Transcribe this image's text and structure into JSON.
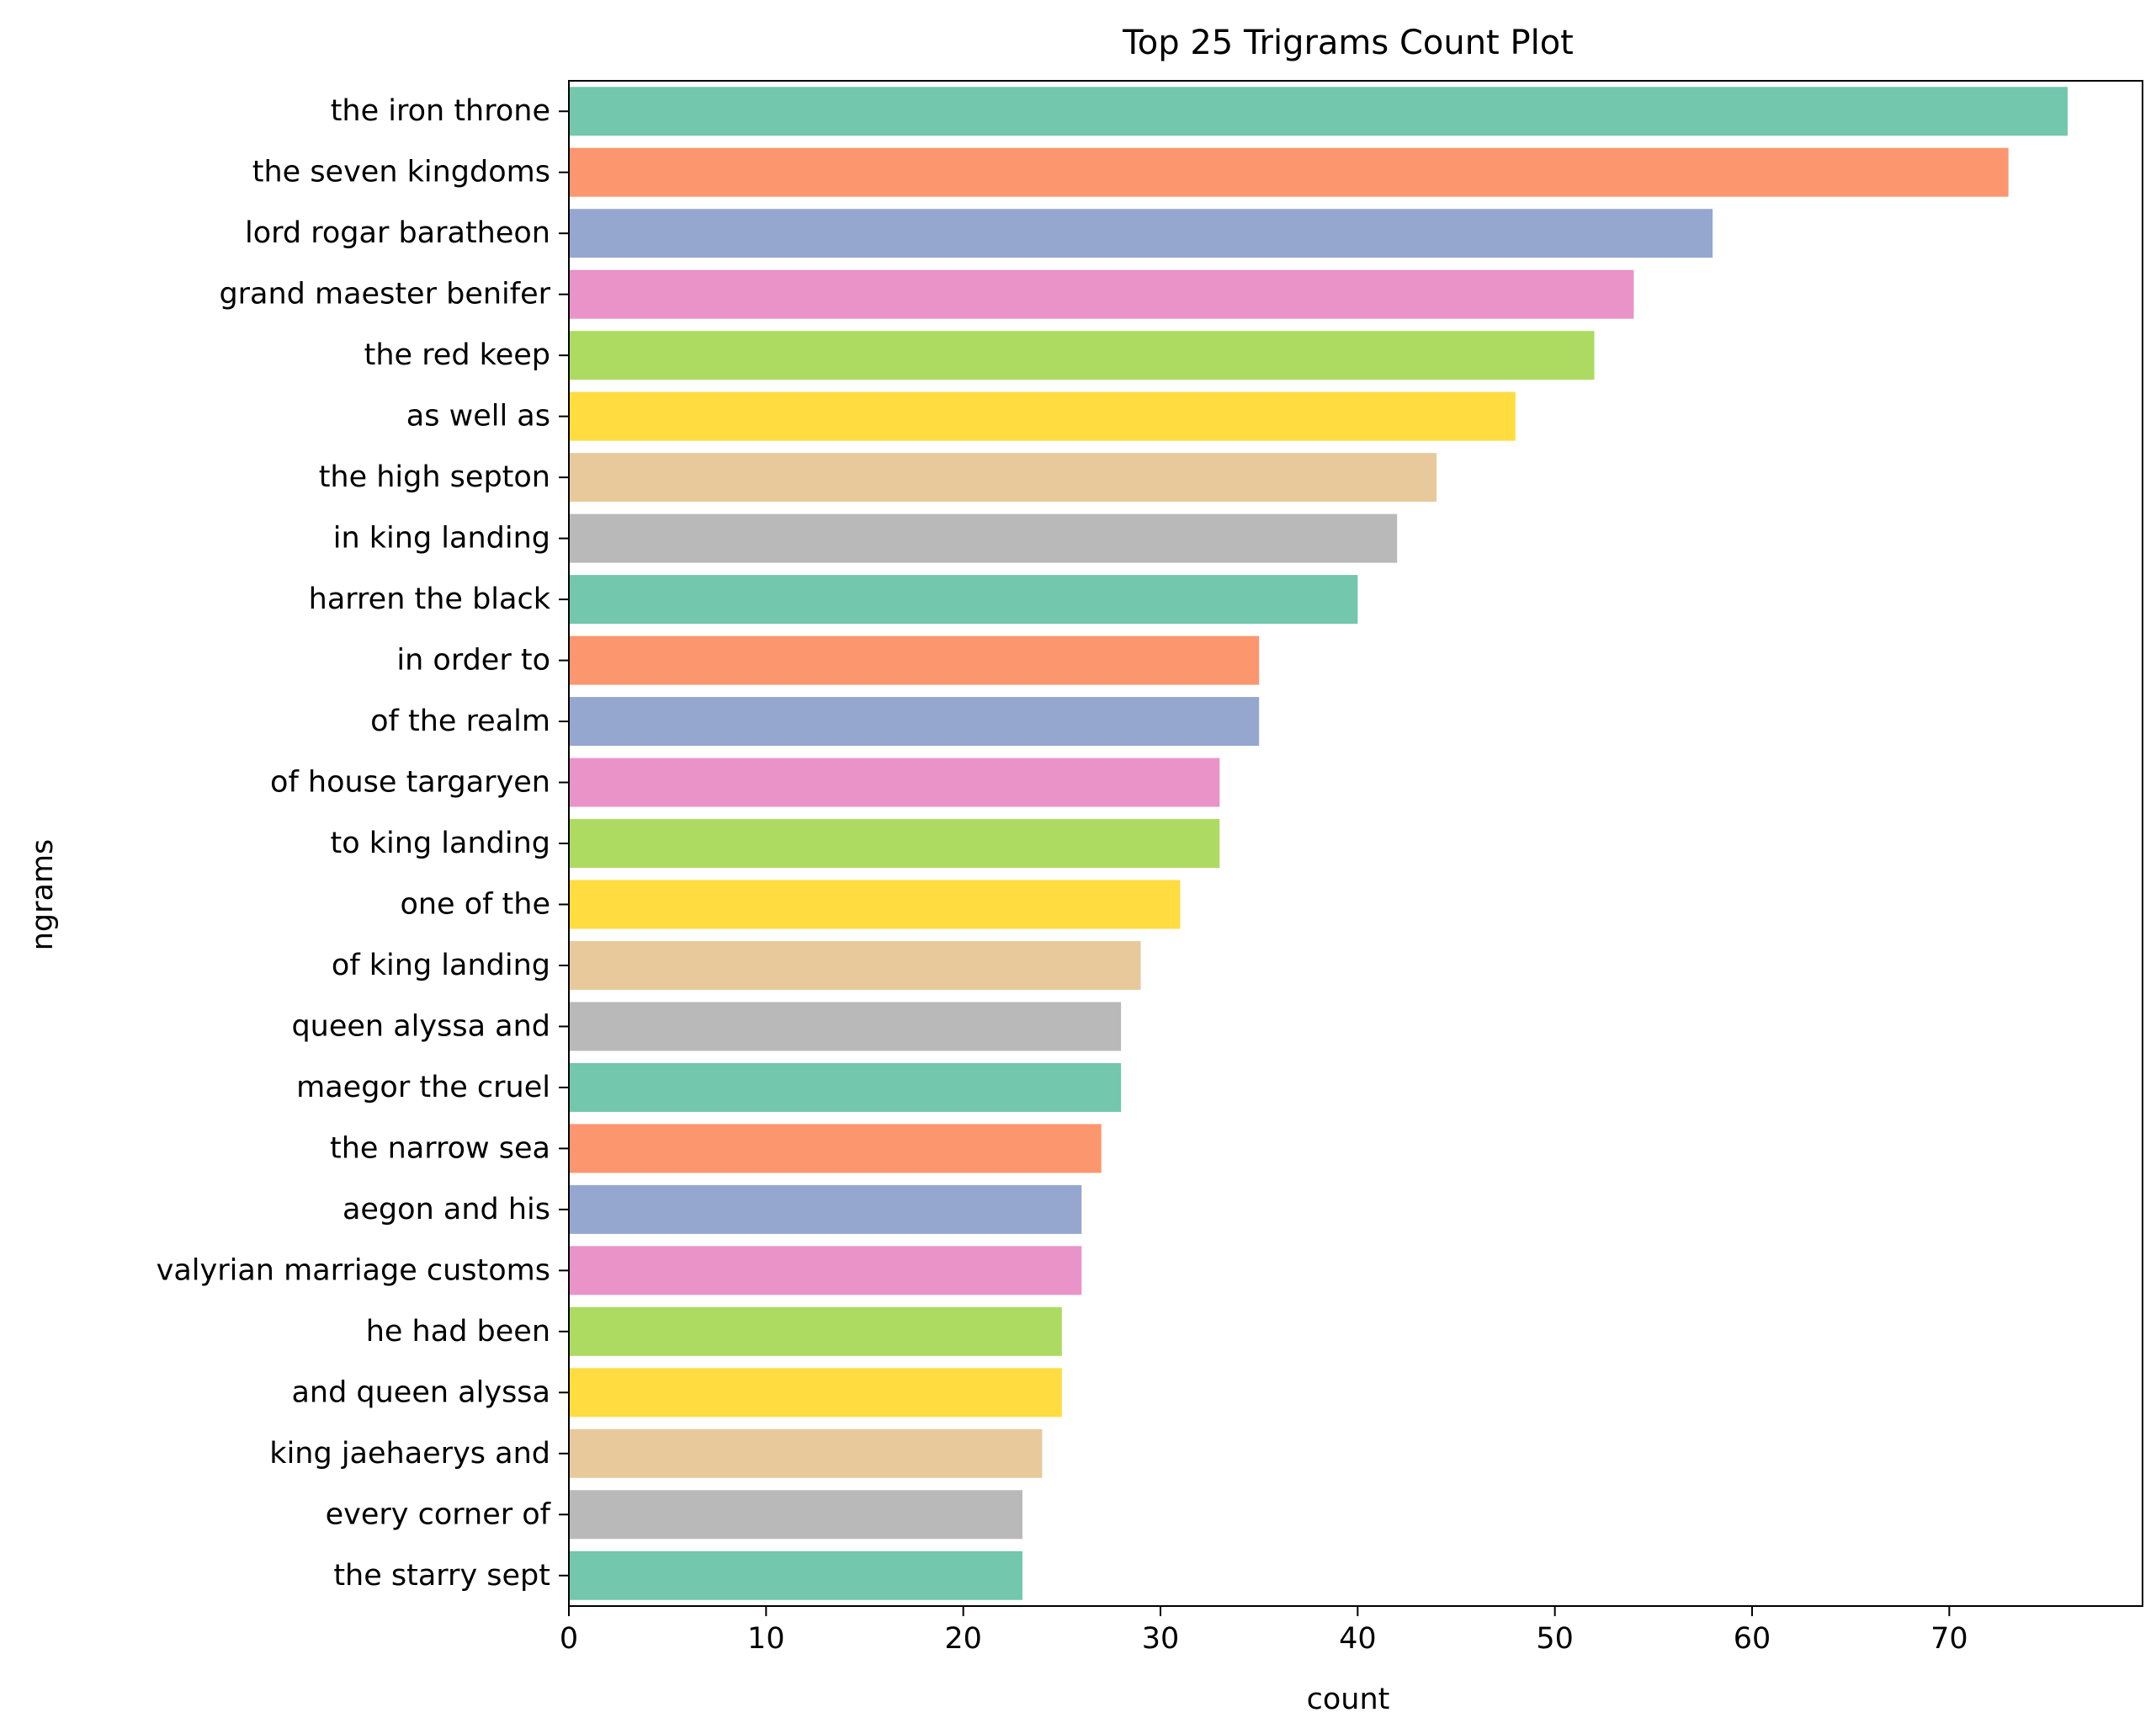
{
  "chart_data": {
    "type": "bar",
    "orientation": "horizontal",
    "title": "Top 25 Trigrams Count Plot",
    "xlabel": "count",
    "ylabel": "ngrams",
    "xlim": [
      0,
      79.8
    ],
    "xticks": [
      0,
      10,
      20,
      30,
      40,
      50,
      60,
      70
    ],
    "grid": false,
    "legend": "none",
    "palette": [
      "#66c2a5",
      "#fc8d62",
      "#8da0cb",
      "#e78ac3",
      "#a6d854",
      "#ffd92f",
      "#e5c494",
      "#b3b3b3"
    ],
    "bar_alpha": 0.92,
    "categories": [
      "the iron throne",
      "the seven kingdoms",
      "lord rogar baratheon",
      "grand maester benifer",
      "the red keep",
      "as well as",
      "the high septon",
      "in king landing",
      "harren the black",
      "in order to",
      "of the realm",
      "of house targaryen",
      "to king landing",
      "one of the",
      "of king landing",
      "queen alyssa and",
      "maegor the cruel",
      "the narrow sea",
      "aegon and his",
      "valyrian marriage customs",
      "he had been",
      "and queen alyssa",
      "king jaehaerys and",
      "every corner of",
      "the starry sept"
    ],
    "values": [
      76,
      73,
      58,
      54,
      52,
      48,
      44,
      42,
      40,
      35,
      35,
      33,
      33,
      31,
      29,
      28,
      28,
      27,
      26,
      26,
      25,
      25,
      24,
      23,
      23
    ]
  }
}
